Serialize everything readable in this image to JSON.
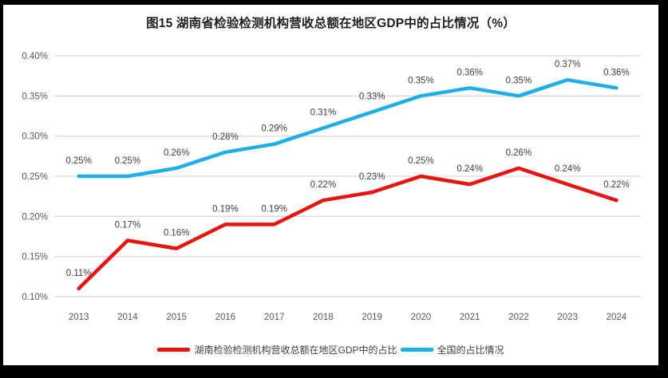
{
  "page": {
    "outer_background": "#000000",
    "panel_background": "#FFFFFF"
  },
  "chart_data": {
    "type": "line",
    "title": "图15 湖南省检验检测机构营收总额在地区GDP中的占比情况（%）",
    "xlabel": "",
    "ylabel": "",
    "unit": "%",
    "categories": [
      "2013",
      "2014",
      "2015",
      "2016",
      "2017",
      "2018",
      "2019",
      "2020",
      "2021",
      "2022",
      "2023",
      "2024"
    ],
    "series": [
      {
        "name": "湖南检验检测机构营收总额在地区GDP中的占比",
        "color": "#E8140F",
        "values": [
          0.11,
          0.17,
          0.16,
          0.19,
          0.19,
          0.22,
          0.23,
          0.25,
          0.24,
          0.26,
          0.24,
          0.22
        ],
        "data_labels": [
          "0.11%",
          "0.17%",
          "0.16%",
          "0.19%",
          "0.19%",
          "0.22%",
          "0.23%",
          "0.25%",
          "0.24%",
          "0.26%",
          "0.24%",
          "0.22%"
        ]
      },
      {
        "name": "全国的占比情况",
        "color": "#1EAFE6",
        "values": [
          0.25,
          0.25,
          0.26,
          0.28,
          0.29,
          0.31,
          0.33,
          0.35,
          0.36,
          0.35,
          0.37,
          0.36
        ],
        "data_labels": [
          "0.25%",
          "0.25%",
          "0.26%",
          "0.28%",
          "0.29%",
          "0.31%",
          "0.33%",
          "0.35%",
          "0.36%",
          "0.35%",
          "0.37%",
          "0.36%"
        ]
      }
    ],
    "ylim": [
      0.1,
      0.4
    ],
    "ytick_values": [
      0.1,
      0.15,
      0.2,
      0.25,
      0.3,
      0.35,
      0.4
    ],
    "ytick_labels": [
      "0.10%",
      "0.15%",
      "0.20%",
      "0.25%",
      "0.30%",
      "0.35%",
      "0.40%"
    ],
    "grid": "horizontal-only",
    "gridline_color": "#D9D9D9",
    "legend_position": "bottom-center"
  }
}
